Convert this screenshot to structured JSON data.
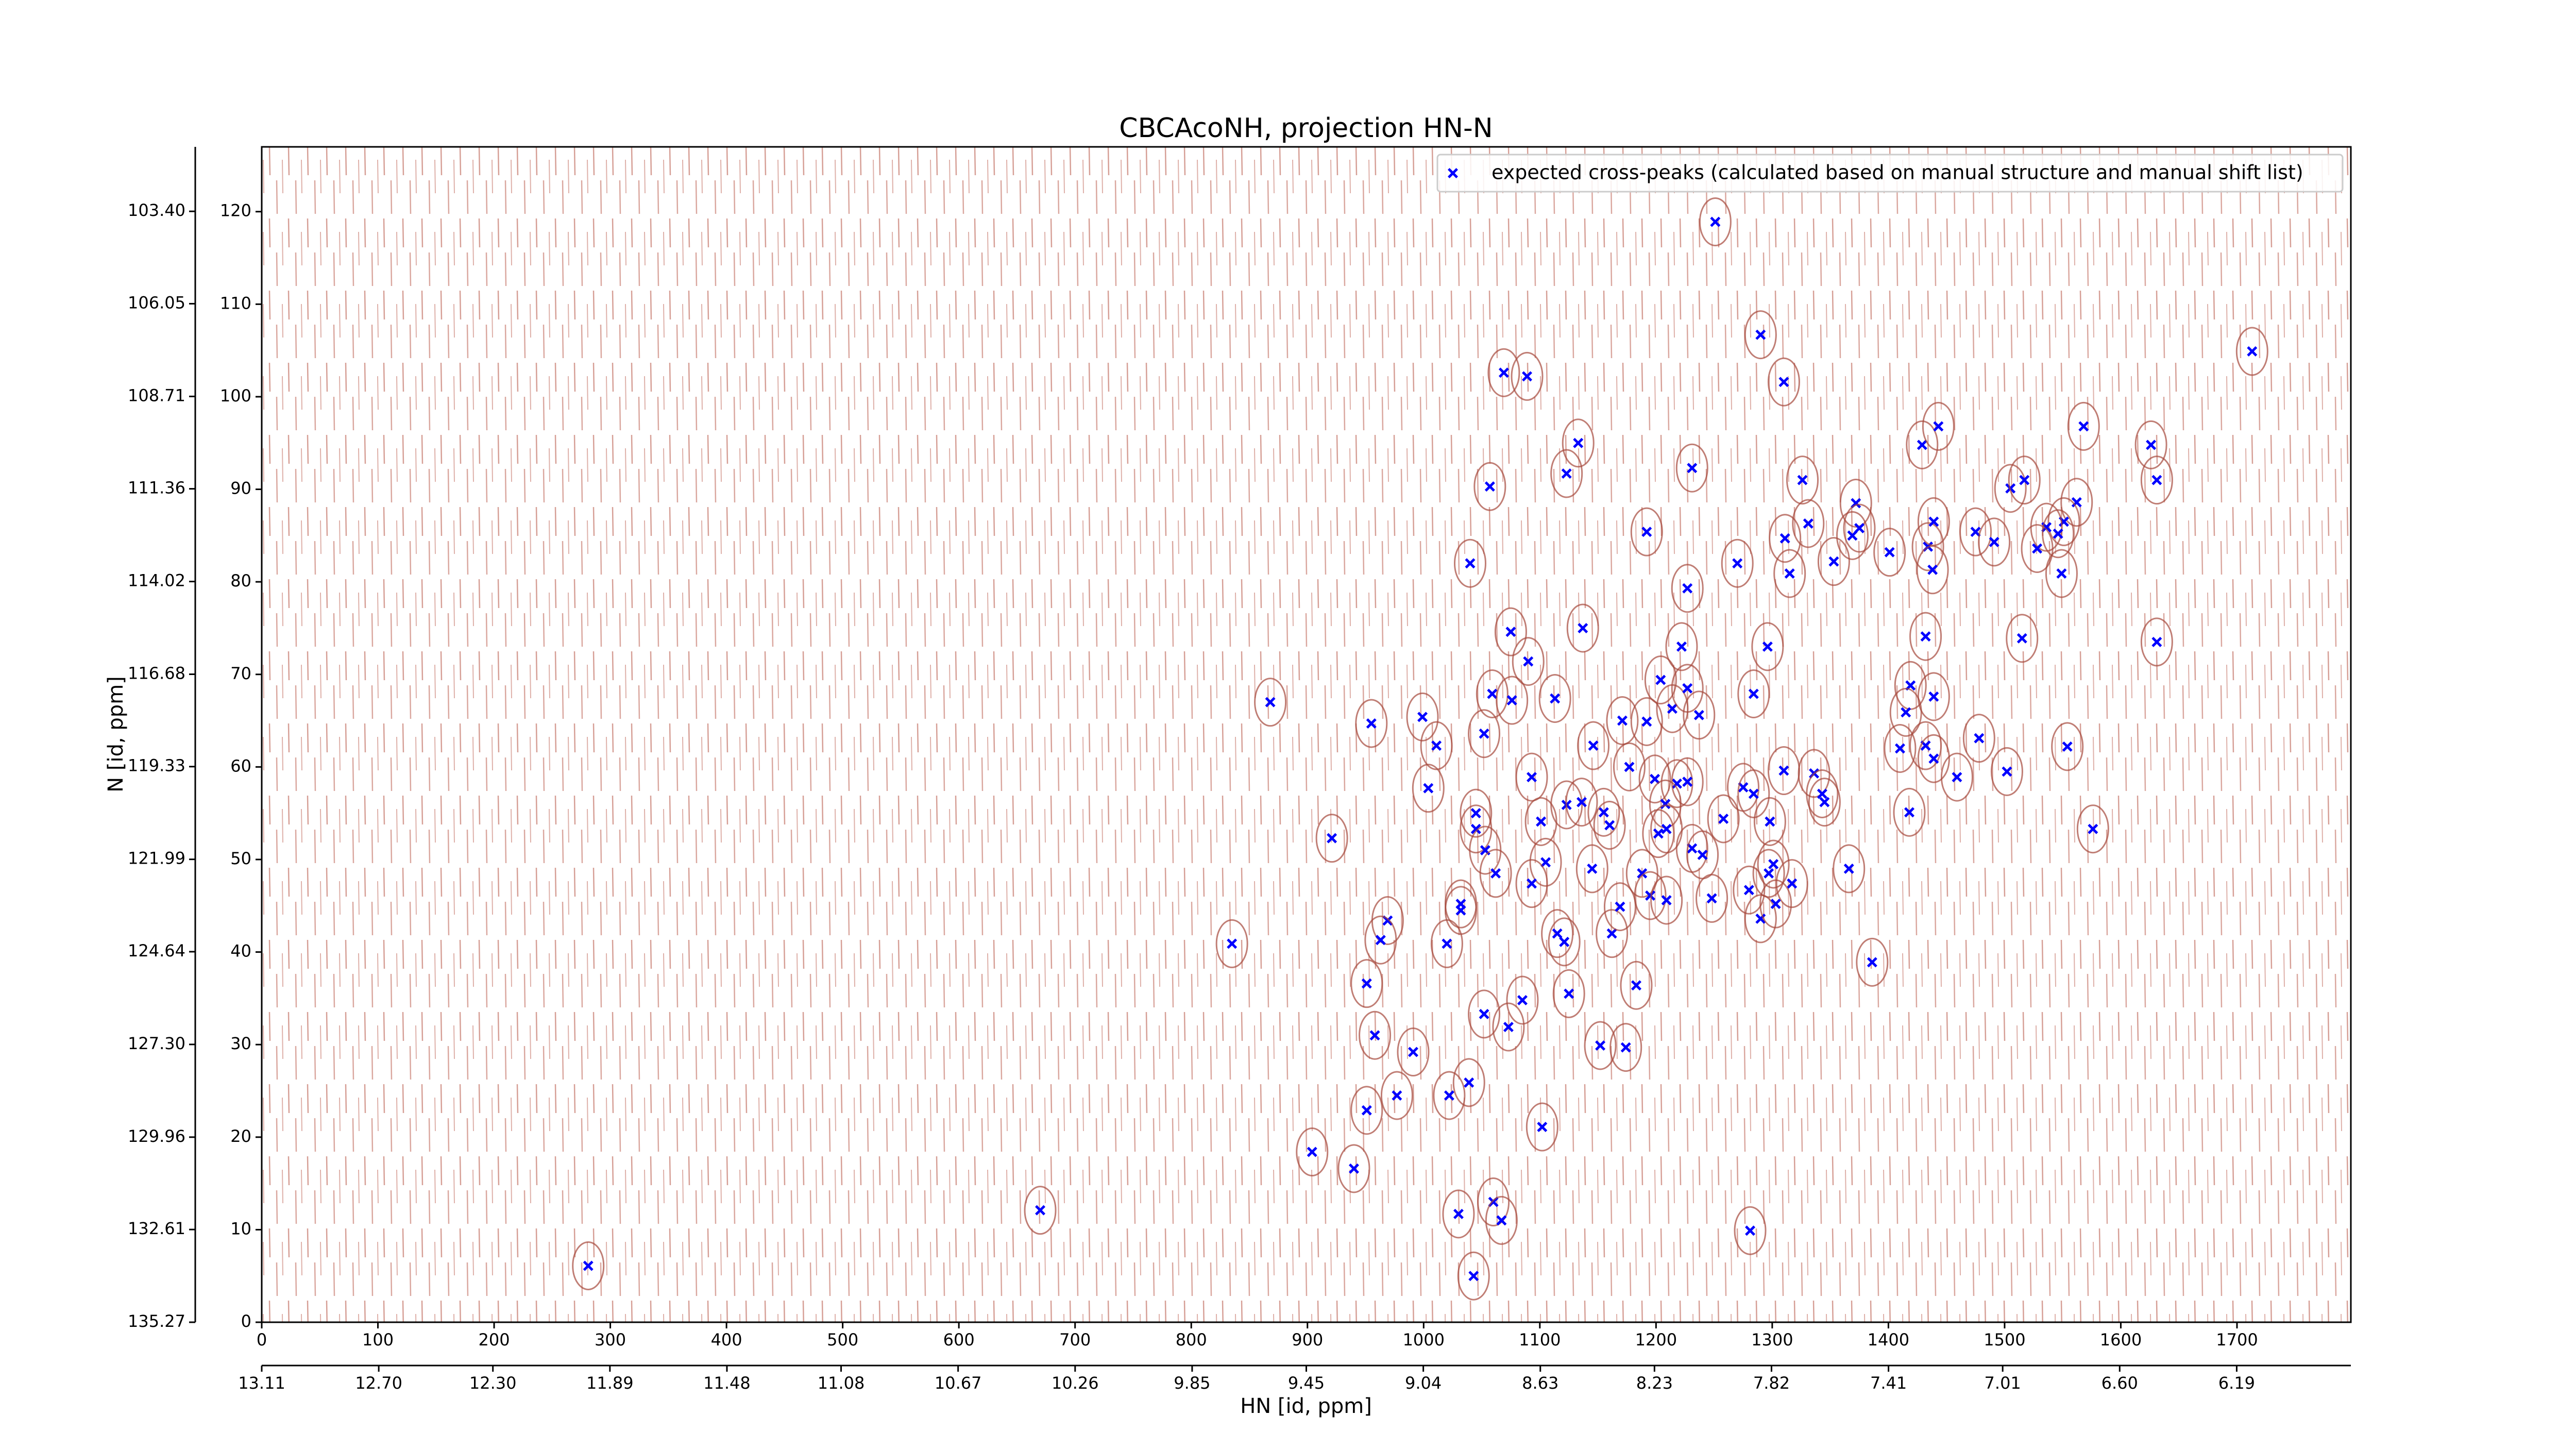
{
  "chart_data": {
    "type": "scatter",
    "title": "CBCAcoNH, projection HN-N",
    "xlabel": "HN [id, ppm]",
    "ylabel": "N [id, ppm]",
    "xlim": [
      0,
      1798
    ],
    "ylim": [
      0,
      127
    ],
    "xticks": [
      0,
      100,
      200,
      300,
      400,
      500,
      600,
      700,
      800,
      900,
      1000,
      1100,
      1200,
      1300,
      1400,
      1500,
      1600,
      1700
    ],
    "yticks": [
      0,
      10,
      20,
      30,
      40,
      50,
      60,
      70,
      80,
      90,
      100,
      110,
      120
    ],
    "x2lim": [
      13.11,
      5.79
    ],
    "x2ticks": [
      13.11,
      {
        "value": 12.7,
        "label": "12.70"
      },
      {
        "value": 12.3,
        "label": "12.30"
      },
      11.89,
      11.48,
      11.08,
      10.67,
      10.26,
      9.85,
      9.45,
      9.04,
      8.63,
      8.23,
      7.82,
      7.41,
      7.01,
      {
        "value": 6.6,
        "label": "6.60"
      },
      6.19
    ],
    "y2lim": [
      135.27,
      101.55
    ],
    "y2ticks": [
      135.27,
      132.61,
      129.96,
      {
        "value": 127.3,
        "label": "127.30"
      },
      124.64,
      121.99,
      119.33,
      116.68,
      114.02,
      111.36,
      108.71,
      106.05,
      {
        "value": 103.4,
        "label": "103.40"
      }
    ],
    "legend": "upper right",
    "series": [
      {
        "name": "expected cross-peaks (calculated based on manual structure and manual shift list)",
        "color": "#0000ff",
        "x": [
          1251,
          1290,
          1310,
          1713,
          1069,
          1089,
          1133,
          1123,
          1231,
          1057,
          1326,
          1429,
          1443,
          1568,
          1626,
          1631,
          1505,
          1517,
          1192,
          1270,
          1311,
          1331,
          1315,
          1353,
          1372,
          1375,
          1369,
          1401,
          1434,
          1439,
          1438,
          1475,
          1491,
          1562,
          1551,
          1536,
          1528,
          1546,
          1549,
          1040,
          1227,
          1075,
          1137,
          1222,
          1296,
          1432,
          1515,
          1631,
          1090,
          1059,
          1076,
          1113,
          868,
          999,
          955,
          1052,
          1146,
          1284,
          1419,
          1439,
          1415,
          1204,
          1214,
          1227,
          1237,
          1192,
          1171,
          1478,
          1410,
          1432,
          1439,
          1459,
          1502,
          1554,
          1011,
          1004,
          1045,
          1045,
          1093,
          1177,
          1199,
          1218,
          1227,
          1208,
          1209,
          1202,
          1155,
          1123,
          1136,
          1160,
          1101,
          1258,
          1275,
          1284,
          1298,
          1310,
          1336,
          1343,
          1345,
          1418,
          1576,
          921,
          1053,
          1231,
          1240,
          1366,
          1062,
          1105,
          1145,
          1188,
          1297,
          1317,
          1280,
          1093,
          1032,
          1032,
          969,
          963,
          835,
          1020,
          1115,
          1121,
          1162,
          1169,
          1195,
          1209,
          1248,
          1290,
          1303,
          1301,
          951,
          1125,
          1183,
          1386,
          1052,
          1085,
          1073,
          958,
          991,
          1152,
          1174,
          977,
          1022,
          1039,
          951,
          1102,
          904,
          940,
          1030,
          1060,
          1067,
          670,
          1281,
          281,
          1043
        ],
        "values": [
          118.9,
          106.7,
          101.6,
          104.9,
          102.6,
          102.2,
          95.0,
          91.7,
          92.3,
          90.3,
          91.0,
          94.8,
          96.8,
          96.8,
          94.8,
          91.0,
          90.1,
          91.0,
          85.4,
          82.0,
          84.7,
          86.3,
          80.9,
          82.2,
          88.5,
          85.8,
          85.0,
          83.2,
          83.8,
          86.5,
          81.3,
          85.4,
          84.3,
          88.6,
          86.5,
          85.9,
          83.6,
          85.2,
          80.9,
          82.0,
          79.3,
          74.6,
          75.0,
          73.0,
          73.0,
          74.1,
          73.9,
          73.5,
          71.4,
          67.9,
          67.2,
          67.4,
          67.0,
          65.4,
          64.7,
          63.6,
          62.3,
          67.9,
          68.8,
          67.6,
          65.9,
          69.4,
          66.3,
          68.5,
          65.6,
          64.9,
          65.0,
          63.1,
          62.0,
          62.3,
          60.9,
          58.9,
          59.5,
          62.2,
          62.3,
          57.7,
          55.0,
          53.3,
          58.9,
          60.0,
          58.7,
          58.2,
          58.4,
          56.0,
          53.3,
          52.8,
          55.1,
          55.9,
          56.2,
          53.7,
          54.1,
          54.4,
          57.8,
          57.1,
          54.1,
          59.6,
          59.3,
          57.1,
          56.2,
          55.1,
          53.3,
          52.3,
          51.0,
          51.2,
          50.5,
          49.0,
          48.5,
          49.7,
          49.0,
          48.5,
          48.5,
          47.4,
          46.7,
          47.4,
          44.5,
          45.2,
          43.4,
          41.3,
          40.9,
          40.9,
          42.0,
          41.1,
          42.0,
          44.9,
          46.1,
          45.6,
          45.8,
          43.6,
          45.2,
          49.5,
          36.6,
          35.5,
          36.4,
          38.9,
          33.3,
          34.8,
          31.9,
          31.0,
          29.2,
          29.9,
          29.7,
          24.5,
          24.5,
          25.9,
          22.9,
          21.1,
          18.4,
          16.6,
          11.7,
          13.0,
          11.0,
          12.1,
          9.9,
          6.1,
          5.0
        ]
      }
    ]
  }
}
